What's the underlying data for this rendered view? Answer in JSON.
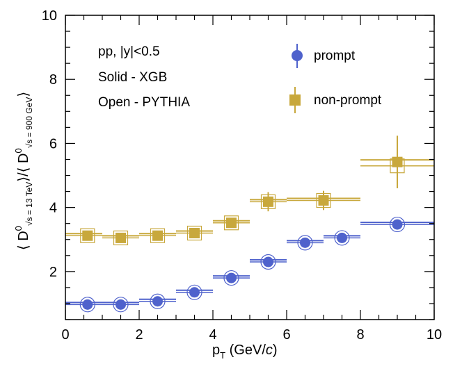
{
  "chart_data": {
    "type": "scatter",
    "xlabel_main": "p",
    "xlabel_sub": "T",
    "xlabel_unit": " (GeV/",
    "xlabel_c": "c",
    "xlabel_close": ")",
    "ylabel": {
      "open": "⟨ D",
      "sup1": "0",
      "sub1": "√s = 13 TeV",
      "mid": "⟩/⟨ D",
      "sup2": "0",
      "sub2": "√s = 900 GeV",
      "close": "⟩"
    },
    "xlim": [
      0,
      10
    ],
    "ylim": [
      0.5,
      10
    ],
    "xticks": [
      0,
      2,
      4,
      6,
      8,
      10
    ],
    "yticks": [
      2,
      4,
      6,
      8,
      10
    ],
    "annotations": [
      "pp, |y|<0.5",
      "Solid - XGB",
      "Open - PYTHIA"
    ],
    "colors": {
      "prompt": "#4f62cc",
      "nonprompt": "#c8a83c"
    },
    "series": [
      {
        "name": "prompt",
        "style": "solid",
        "points": [
          {
            "x": 0.6,
            "xlo": 0,
            "xhi": 1,
            "y": 0.97,
            "yerr": 0
          },
          {
            "x": 1.5,
            "xlo": 1,
            "xhi": 2,
            "y": 0.97,
            "yerr": 0
          },
          {
            "x": 2.5,
            "xlo": 2,
            "xhi": 3,
            "y": 1.07,
            "yerr": 0
          },
          {
            "x": 3.5,
            "xlo": 3,
            "xhi": 4,
            "y": 1.35,
            "yerr": 0
          },
          {
            "x": 4.5,
            "xlo": 4,
            "xhi": 5,
            "y": 1.8,
            "yerr": 0
          },
          {
            "x": 5.5,
            "xlo": 5,
            "xhi": 6,
            "y": 2.3,
            "yerr": 0
          },
          {
            "x": 6.5,
            "xlo": 6,
            "xhi": 7,
            "y": 2.9,
            "yerr": 0
          },
          {
            "x": 7.5,
            "xlo": 7,
            "xhi": 8,
            "y": 3.05,
            "yerr": 0
          },
          {
            "x": 9.0,
            "xlo": 8,
            "xhi": 10,
            "y": 3.47,
            "yerr": 0
          }
        ]
      },
      {
        "name": "prompt",
        "style": "open",
        "points": [
          {
            "x": 0.6,
            "xlo": 0,
            "xhi": 1,
            "y": 0.97
          },
          {
            "x": 1.5,
            "xlo": 1,
            "xhi": 2,
            "y": 0.97
          },
          {
            "x": 2.5,
            "xlo": 2,
            "xhi": 3,
            "y": 1.07
          },
          {
            "x": 3.5,
            "xlo": 3,
            "xhi": 4,
            "y": 1.35
          },
          {
            "x": 4.5,
            "xlo": 4,
            "xhi": 5,
            "y": 1.8
          },
          {
            "x": 5.5,
            "xlo": 5,
            "xhi": 6,
            "y": 2.3
          },
          {
            "x": 6.5,
            "xlo": 6,
            "xhi": 7,
            "y": 2.9
          },
          {
            "x": 7.5,
            "xlo": 7,
            "xhi": 8,
            "y": 3.05
          },
          {
            "x": 9.0,
            "xlo": 8,
            "xhi": 10,
            "y": 3.47
          }
        ]
      },
      {
        "name": "non-prompt",
        "style": "solid",
        "points": [
          {
            "x": 0.6,
            "xlo": 0,
            "xhi": 1,
            "y": 3.12,
            "yerr": 0
          },
          {
            "x": 1.5,
            "xlo": 1,
            "xhi": 2,
            "y": 3.05,
            "yerr": 0
          },
          {
            "x": 2.5,
            "xlo": 2,
            "xhi": 3,
            "y": 3.12,
            "yerr": 0
          },
          {
            "x": 3.5,
            "xlo": 3,
            "xhi": 4,
            "y": 3.2,
            "yerr": 0
          },
          {
            "x": 4.5,
            "xlo": 4,
            "xhi": 5,
            "y": 3.52,
            "yerr": 0.05
          },
          {
            "x": 5.5,
            "xlo": 5,
            "xhi": 6,
            "y": 4.18,
            "yerr": 0.3
          },
          {
            "x": 7.0,
            "xlo": 6,
            "xhi": 8,
            "y": 4.22,
            "yerr": 0.3
          },
          {
            "x": 9.0,
            "xlo": 8,
            "xhi": 10,
            "y": 5.42,
            "yerr": 0.82
          }
        ]
      },
      {
        "name": "non-prompt",
        "style": "open",
        "points": [
          {
            "x": 0.6,
            "xlo": 0,
            "xhi": 1,
            "y": 3.12
          },
          {
            "x": 1.5,
            "xlo": 1,
            "xhi": 2,
            "y": 3.05
          },
          {
            "x": 2.5,
            "xlo": 2,
            "xhi": 3,
            "y": 3.12
          },
          {
            "x": 3.5,
            "xlo": 3,
            "xhi": 4,
            "y": 3.2
          },
          {
            "x": 4.5,
            "xlo": 4,
            "xhi": 5,
            "y": 3.52
          },
          {
            "x": 5.5,
            "xlo": 5,
            "xhi": 6,
            "y": 4.18
          },
          {
            "x": 7.0,
            "xlo": 6,
            "xhi": 8,
            "y": 4.22
          },
          {
            "x": 9.0,
            "xlo": 8,
            "xhi": 10,
            "y": 5.3
          }
        ]
      }
    ],
    "legend": [
      {
        "label": "prompt",
        "marker": "circle"
      },
      {
        "label": "non-prompt",
        "marker": "square"
      }
    ]
  }
}
